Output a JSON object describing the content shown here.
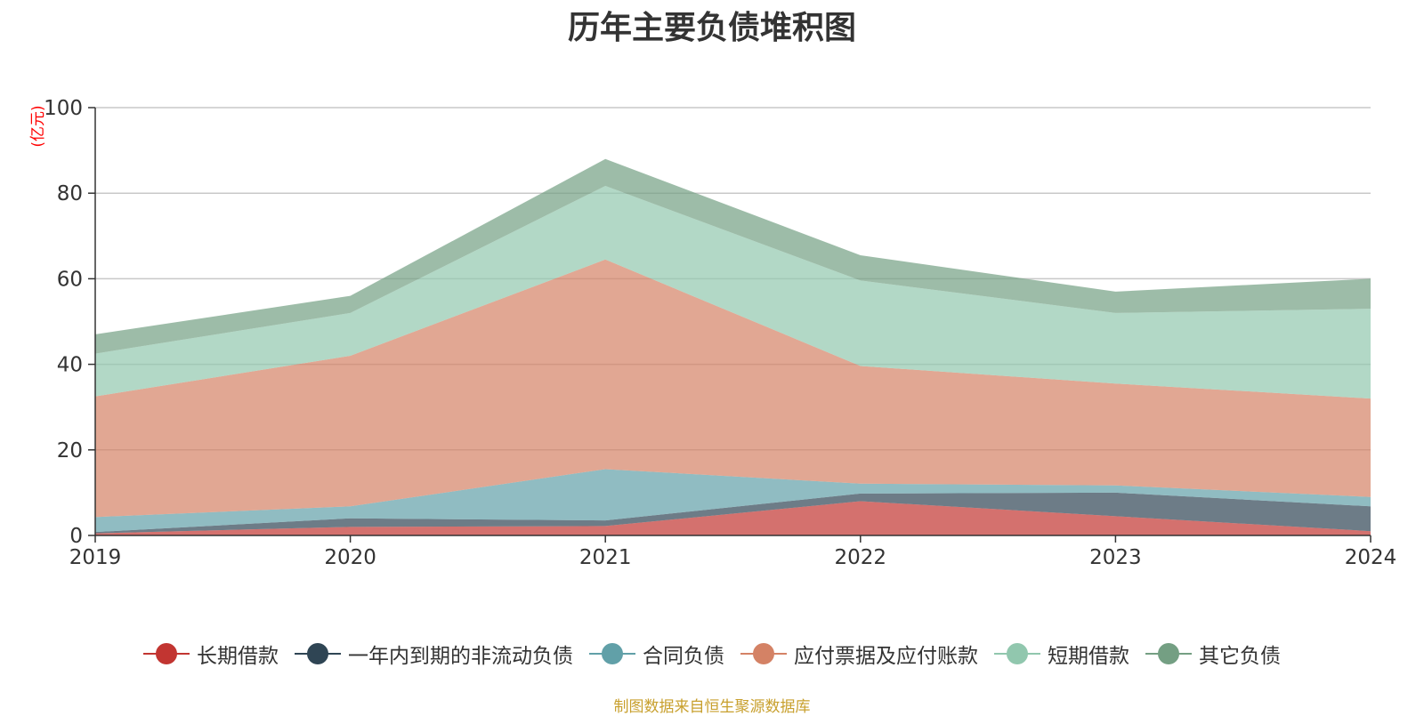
{
  "chart_data": {
    "type": "area",
    "stacked": true,
    "title": "历年主要负债堆积图",
    "ylabel": "(亿元)",
    "xlabel": "",
    "ylim": [
      0,
      100
    ],
    "yticks": [
      0,
      20,
      40,
      60,
      80,
      100
    ],
    "x": [
      "2019",
      "2020",
      "2021",
      "2022",
      "2023",
      "2024"
    ],
    "grid": true,
    "legend_position": "bottom",
    "series": [
      {
        "name": "长期借款",
        "color": "#c23531",
        "values": [
          0.5,
          2.0,
          2.2,
          8.0,
          4.5,
          1.0
        ]
      },
      {
        "name": "一年内到期的非流动负债",
        "color": "#2f4554",
        "values": [
          0.3,
          2.0,
          1.3,
          1.8,
          5.5,
          5.8
        ]
      },
      {
        "name": "合同负债",
        "color": "#61a0a8",
        "values": [
          3.5,
          2.8,
          12.0,
          2.3,
          1.7,
          2.2
        ]
      },
      {
        "name": "应付票据及应付账款",
        "color": "#d48265",
        "values": [
          28.2,
          35.2,
          49.0,
          27.5,
          23.8,
          23.0
        ]
      },
      {
        "name": "短期借款",
        "color": "#91c7ae",
        "values": [
          10.0,
          10.0,
          17.2,
          20.0,
          16.5,
          21.0
        ]
      },
      {
        "name": "其它负债",
        "color": "#749f83",
        "values": [
          4.5,
          4.0,
          6.3,
          5.9,
          5.0,
          7.0
        ]
      }
    ],
    "source_note": "制图数据来自恒生聚源数据库"
  }
}
